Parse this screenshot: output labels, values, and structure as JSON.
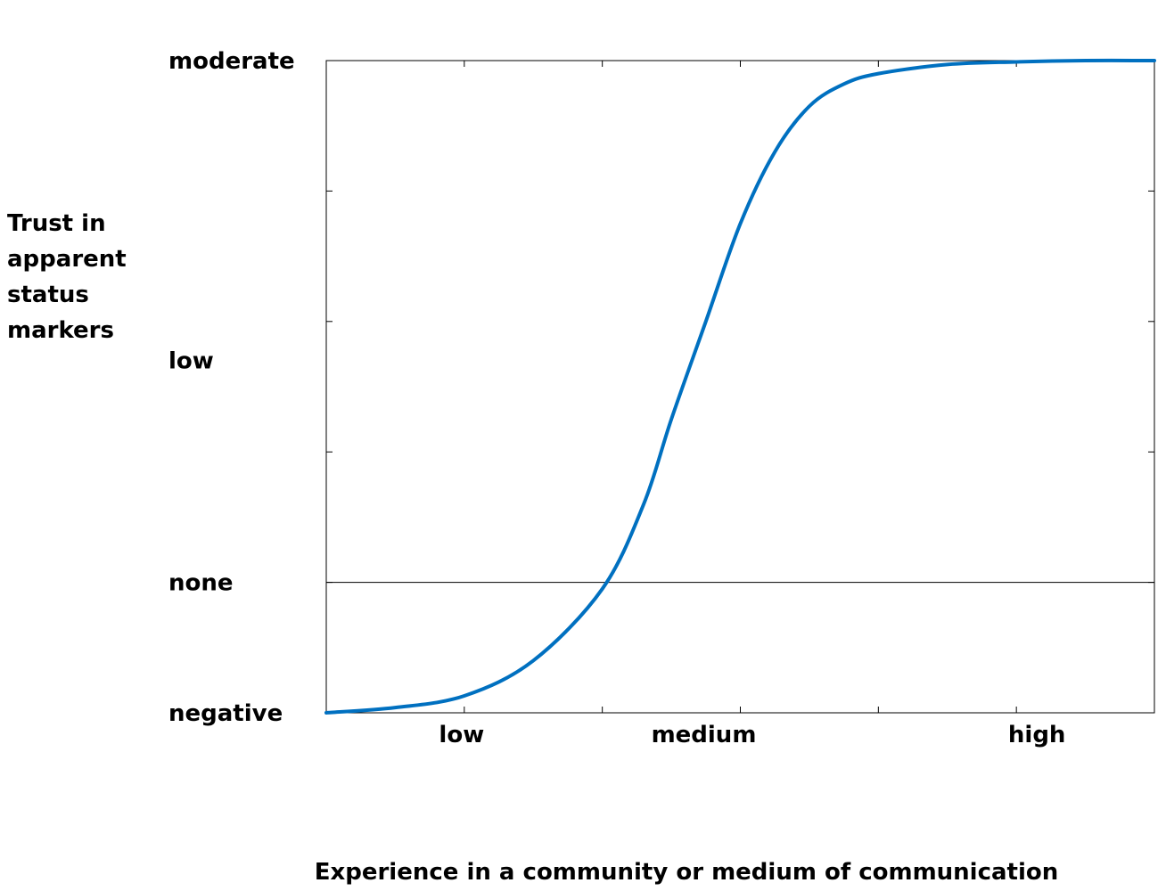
{
  "chart_data": {
    "type": "line",
    "title": "",
    "xlabel": "Experience in a community or medium of communication",
    "ylabel_lines": [
      "Trust in",
      "apparent",
      "status",
      "markers"
    ],
    "xlim": [
      0,
      6
    ],
    "ylim": [
      -1,
      4
    ],
    "x_tick_labels": [
      {
        "value": 1,
        "label": "low"
      },
      {
        "value": 3,
        "label": "medium"
      },
      {
        "value": 5,
        "label": "high"
      }
    ],
    "y_tick_labels": [
      {
        "value": -1,
        "label": "negative"
      },
      {
        "value": 0,
        "label": "none"
      },
      {
        "value": 1.7,
        "label": "low"
      },
      {
        "value": 4,
        "label": "moderate"
      }
    ],
    "x_minor_ticks": [
      1,
      2,
      3,
      4,
      5
    ],
    "y_minor_ticks": [
      0,
      1,
      2,
      3
    ],
    "zero_line": 0,
    "grid": false,
    "series": [
      {
        "color": "#0070C0",
        "x": [
          0,
          0.5,
          1,
          1.5,
          2,
          2.3,
          2.5,
          2.75,
          3,
          3.25,
          3.5,
          3.75,
          4,
          4.5,
          5,
          5.5,
          6
        ],
        "y": [
          -1,
          -0.96,
          -0.87,
          -0.6,
          -0.05,
          0.6,
          1.25,
          2.0,
          2.75,
          3.3,
          3.65,
          3.82,
          3.9,
          3.97,
          3.99,
          4.0,
          4.0
        ]
      }
    ]
  }
}
